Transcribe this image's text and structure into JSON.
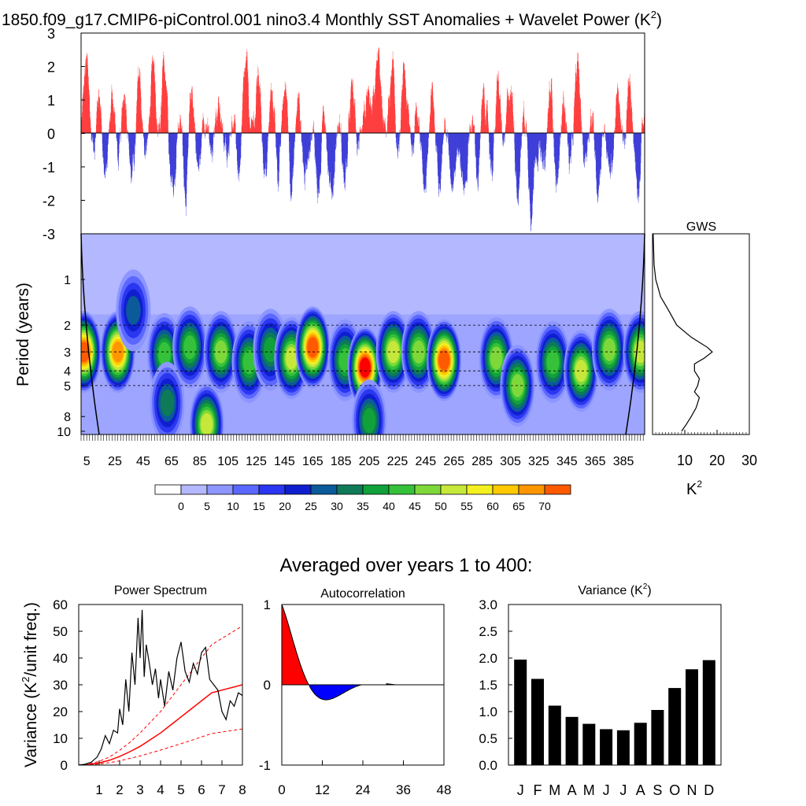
{
  "title": {
    "main": "1850.f09_g17.CMIP6-piControl.001 nino3.4 Monthly SST Anomalies + Wavelet Power (K",
    "sup": "2",
    "close": ")"
  },
  "colors": {
    "positive": "#ff0000",
    "negative": "#0000cc",
    "background_contour": "#b3b8ff",
    "black": "#000000",
    "dash_red": "#ff0000"
  },
  "chart_data": [
    {
      "id": "anomaly_timeseries",
      "type": "bar",
      "x_range_years": [
        1,
        400
      ],
      "ylim": [
        -3,
        3
      ],
      "yticks": [
        "3",
        "2",
        "1",
        "0",
        "-1",
        "-2",
        "-3"
      ],
      "description": "monthly SST anomalies, red positive, blue negative"
    },
    {
      "id": "wavelet_power",
      "type": "heatmap",
      "ylabel": "Period (years)",
      "yticks": [
        "1",
        "2",
        "3",
        "4",
        "5",
        "8",
        "10"
      ],
      "dashed_periods": [
        2,
        3,
        4,
        5
      ],
      "xticks": [
        "5",
        "25",
        "45",
        "65",
        "85",
        "105",
        "125",
        "145",
        "165",
        "185",
        "205",
        "225",
        "245",
        "265",
        "285",
        "305",
        "325",
        "345",
        "365",
        "385"
      ],
      "colorbar_labels": [
        "0",
        "5",
        "10",
        "15",
        "20",
        "25",
        "30",
        "35",
        "40",
        "45",
        "50",
        "55",
        "60",
        "65",
        "70"
      ],
      "colorbar_colors": [
        "#ffffff",
        "#b3b8ff",
        "#8d96ff",
        "#5b68ff",
        "#2b36f0",
        "#0f1fd0",
        "#0b5a9a",
        "#0e7a58",
        "#10a13a",
        "#35c23a",
        "#7fd83a",
        "#c6e83a",
        "#f4f020",
        "#ffc800",
        "#ff9600",
        "#ff5a00",
        "#ff0000"
      ],
      "hotspots": [
        {
          "year": 3,
          "period": 3.0,
          "level": 15
        },
        {
          "year": 27,
          "period": 3.0,
          "level": 14
        },
        {
          "year": 38,
          "period": 1.6,
          "level": 6
        },
        {
          "year": 60,
          "period": 3.1,
          "level": 9
        },
        {
          "year": 62,
          "period": 6.5,
          "level": 7
        },
        {
          "year": 78,
          "period": 2.8,
          "level": 9
        },
        {
          "year": 90,
          "period": 9.0,
          "level": 11
        },
        {
          "year": 100,
          "period": 3.0,
          "level": 10
        },
        {
          "year": 120,
          "period": 3.5,
          "level": 9
        },
        {
          "year": 135,
          "period": 2.9,
          "level": 8
        },
        {
          "year": 150,
          "period": 3.3,
          "level": 11
        },
        {
          "year": 165,
          "period": 2.8,
          "level": 15
        },
        {
          "year": 188,
          "period": 3.4,
          "level": 9
        },
        {
          "year": 202,
          "period": 3.8,
          "level": 16
        },
        {
          "year": 205,
          "period": 8.5,
          "level": 8
        },
        {
          "year": 222,
          "period": 3.0,
          "level": 11
        },
        {
          "year": 240,
          "period": 3.0,
          "level": 10
        },
        {
          "year": 258,
          "period": 3.4,
          "level": 15
        },
        {
          "year": 295,
          "period": 3.3,
          "level": 10
        },
        {
          "year": 310,
          "period": 5.0,
          "level": 10
        },
        {
          "year": 335,
          "period": 3.5,
          "level": 9
        },
        {
          "year": 355,
          "period": 4.0,
          "level": 11
        },
        {
          "year": 375,
          "period": 2.9,
          "level": 10
        },
        {
          "year": 397,
          "period": 3.0,
          "level": 11
        }
      ]
    },
    {
      "id": "global_wavelet_spectrum",
      "type": "line",
      "title": "GWS",
      "xlabel": "K",
      "xlabel_sup": "2",
      "xticks": [
        "10",
        "20",
        "30"
      ],
      "xlim": [
        0,
        30
      ],
      "period": [
        0.5,
        0.8,
        1.0,
        1.3,
        1.6,
        2.0,
        2.4,
        2.8,
        3.0,
        3.3,
        3.6,
        4.0,
        4.5,
        5.0,
        5.5,
        6.0,
        7.0,
        8.0,
        9.0,
        10.0
      ],
      "power": [
        0.2,
        0.5,
        1.0,
        2.5,
        5.0,
        7.5,
        12.0,
        17.0,
        18.5,
        16.0,
        13.0,
        13.0,
        14.5,
        14.0,
        13.0,
        14.5,
        13.5,
        12.0,
        10.5,
        9.0
      ]
    },
    {
      "id": "power_spectrum",
      "type": "line",
      "title": "Power Spectrum",
      "ylabel": "Variance (K",
      "ylabel_sup": "2",
      "ylabel_tail": "/unit freq.)",
      "yticks": [
        "60",
        "50",
        "40",
        "30",
        "20",
        "10",
        "0"
      ],
      "xticks": [
        "1",
        "2",
        "3",
        "4",
        "5",
        "6",
        "7",
        "8"
      ],
      "xlim": [
        0,
        8
      ],
      "ylim": [
        0,
        60
      ],
      "x": [
        0,
        0.3,
        0.6,
        0.9,
        1.1,
        1.3,
        1.5,
        1.7,
        1.9,
        2.0,
        2.15,
        2.3,
        2.45,
        2.6,
        2.75,
        2.9,
        3.0,
        3.1,
        3.2,
        3.3,
        3.45,
        3.6,
        3.75,
        3.9,
        4.0,
        4.2,
        4.4,
        4.6,
        4.8,
        5.0,
        5.2,
        5.4,
        5.6,
        5.8,
        6.0,
        6.2,
        6.4,
        6.6,
        6.8,
        7.0,
        7.2,
        7.4,
        7.6,
        7.8,
        8.0
      ],
      "y": [
        0,
        0.3,
        1,
        3,
        6,
        11,
        8,
        13,
        12,
        21,
        15,
        32,
        20,
        42,
        30,
        55,
        40,
        58,
        33,
        45,
        38,
        30,
        36,
        25,
        32,
        22,
        35,
        28,
        40,
        46,
        35,
        31,
        38,
        34,
        42,
        44,
        32,
        30,
        28,
        20,
        17,
        24,
        22,
        27,
        26
      ],
      "red_null": [
        0,
        0.2,
        0.8,
        1.8,
        3.2,
        5,
        7,
        9.5,
        12,
        15,
        18,
        21,
        24,
        27,
        30
      ],
      "red_null_x": [
        0,
        0.5,
        1,
        1.5,
        2,
        2.5,
        3,
        3.5,
        4,
        4.5,
        5,
        5.5,
        6,
        6.5,
        8
      ],
      "red_upper": [
        0,
        0.4,
        1.4,
        3,
        5.5,
        8.5,
        12,
        16,
        20,
        25,
        30,
        35,
        40,
        45,
        52
      ],
      "red_lower": [
        0,
        0.1,
        0.4,
        0.9,
        1.6,
        2.5,
        3.4,
        4.5,
        5.6,
        6.8,
        8,
        9.2,
        10.5,
        11.8,
        13.5
      ]
    },
    {
      "id": "autocorrelation",
      "type": "area",
      "title": "Autocorrelation",
      "yticks": [
        "1",
        "0",
        "-1"
      ],
      "xticks": [
        "0",
        "12",
        "24",
        "36",
        "48"
      ],
      "xlim": [
        0,
        48
      ],
      "ylim": [
        -1,
        1
      ]
    },
    {
      "id": "monthly_variance",
      "type": "bar",
      "title": "Variance (K",
      "title_sup": "2",
      "title_close": ")",
      "categories": [
        "J",
        "F",
        "M",
        "A",
        "M",
        "J",
        "J",
        "A",
        "S",
        "O",
        "N",
        "D"
      ],
      "values": [
        1.97,
        1.61,
        1.11,
        0.9,
        0.77,
        0.67,
        0.65,
        0.79,
        1.03,
        1.44,
        1.79,
        1.96
      ],
      "yticks": [
        "3.0",
        "2.5",
        "2.0",
        "1.5",
        "1.0",
        "0.5",
        "0.0"
      ],
      "ylim": [
        0,
        3
      ]
    }
  ],
  "averaged_label": "Averaged over years 1 to 400:"
}
